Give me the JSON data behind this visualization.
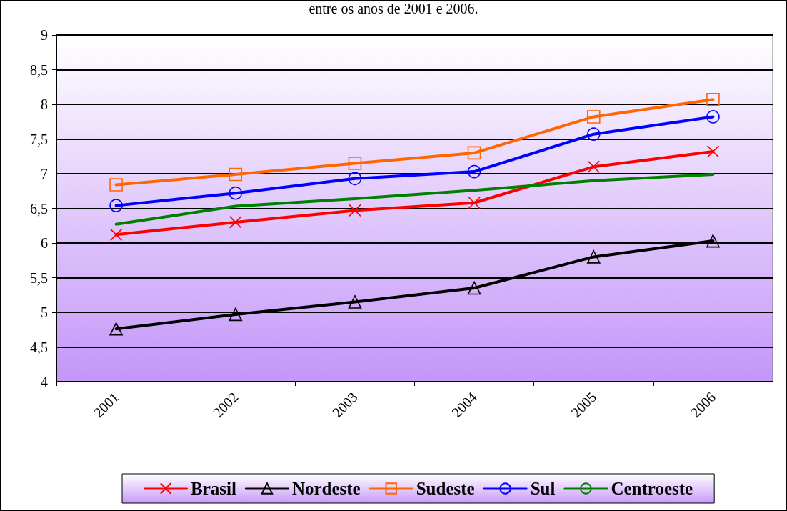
{
  "chart_data": {
    "type": "line",
    "title": "entre os anos de 2001 e 2006.",
    "categories": [
      "2001",
      "2002",
      "2003",
      "2004",
      "2005",
      "2006"
    ],
    "series": [
      {
        "name": "Brasil",
        "color": "#ff0000",
        "marker": "cross",
        "values": [
          6.12,
          6.3,
          6.47,
          6.58,
          7.1,
          7.32
        ]
      },
      {
        "name": "Nordeste",
        "color": "#000000",
        "marker": "triangle",
        "values": [
          4.76,
          4.97,
          5.15,
          5.35,
          5.8,
          6.03
        ]
      },
      {
        "name": "Sudeste",
        "color": "#ff6600",
        "marker": "square",
        "values": [
          6.84,
          6.99,
          7.15,
          7.3,
          7.82,
          8.07
        ]
      },
      {
        "name": "Sul",
        "color": "#0000ff",
        "marker": "circle",
        "values": [
          6.54,
          6.72,
          6.93,
          7.03,
          7.57,
          7.82
        ]
      },
      {
        "name": "Centroeste",
        "color": "#008000",
        "marker": "none",
        "values": [
          6.27,
          6.53,
          6.64,
          6.76,
          6.9,
          6.99
        ]
      }
    ],
    "ylim": [
      4,
      9
    ],
    "yticks": [
      4,
      {
        "value": 4.5,
        "label": "4,5"
      },
      5,
      {
        "value": 5.5,
        "label": "5,5"
      },
      6,
      {
        "value": 6.5,
        "label": "6,5"
      },
      7,
      {
        "value": 7.5,
        "label": "7,5"
      },
      8,
      {
        "value": 8.5,
        "label": "8,5"
      },
      9
    ],
    "grid": "y",
    "legend": "bottom",
    "line_style": "solid"
  }
}
